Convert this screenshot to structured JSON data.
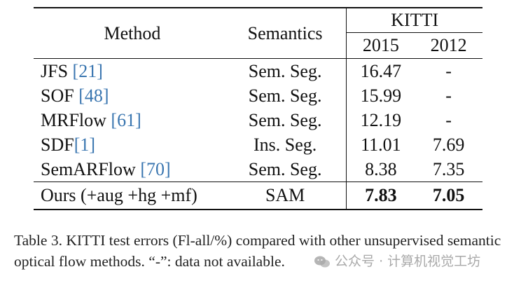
{
  "table": {
    "header": {
      "method": "Method",
      "semantics": "Semantics",
      "dataset": "KITTI",
      "years": [
        "2015",
        "2012"
      ]
    },
    "rows": [
      {
        "method": "JFS ",
        "cite": "[21]",
        "semantics": "Sem. Seg.",
        "v2015": "16.47",
        "v2012": "-"
      },
      {
        "method": "SOF ",
        "cite": "[48]",
        "semantics": "Sem. Seg.",
        "v2015": "15.99",
        "v2012": "-"
      },
      {
        "method": "MRFlow ",
        "cite": "[61]",
        "semantics": "Sem. Seg.",
        "v2015": "12.19",
        "v2012": "-"
      },
      {
        "method": "SDF",
        "cite": "[1]",
        "semantics": "Ins. Seg.",
        "v2015": "11.01",
        "v2012": "7.69"
      },
      {
        "method": "SemARFlow ",
        "cite": "[70]",
        "semantics": "Sem. Seg.",
        "v2015": "8.38",
        "v2012": "7.35"
      }
    ],
    "ours": {
      "method": "Ours (+aug +hg +mf)",
      "semantics": "SAM",
      "v2015": "7.83",
      "v2012": "7.05"
    }
  },
  "caption": "Table 3.  KITTI test errors (Fl-all/%) compared with other unsupervised semantic optical flow methods. “-”: data not available.",
  "watermark": "公众号 · 计算机视觉工坊",
  "colors": {
    "citation": "#3a76b0"
  }
}
